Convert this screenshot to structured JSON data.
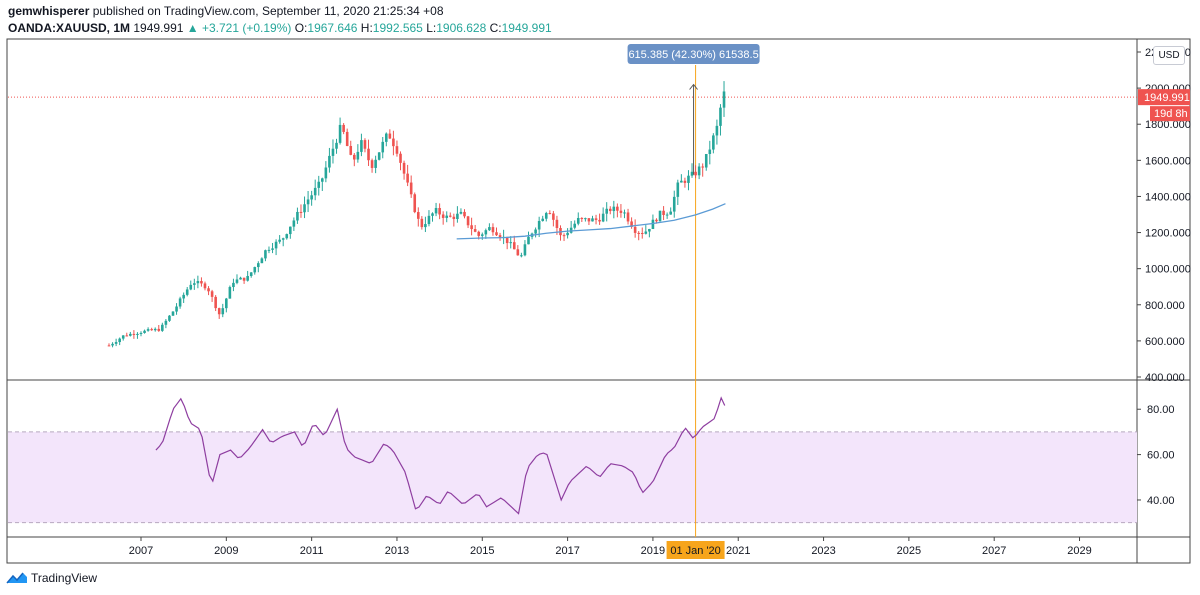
{
  "header": {
    "author": "gemwhisperer",
    "published_text": "published on TradingView.com, September 11, 2020 21:25:34 +08",
    "symbol": "OANDA:XAUUSD, 1M",
    "last": "1949.991",
    "change": "▲ +3.721 (+0.19%)",
    "o_label": "O:",
    "o_val": "1967.646",
    "h_label": "H:",
    "h_val": "1992.565",
    "l_label": "L:",
    "l_val": "1906.628",
    "c_label": "C:",
    "c_val": "1949.991"
  },
  "currency_button": "USD",
  "measure_label": "615.385 (42.30%) 61538.5",
  "price_badge": "1949.991",
  "countdown_badge": "19d 8h",
  "crosshair_date": "01 Jan '20",
  "footer": {
    "brand": "TradingView"
  },
  "colors": {
    "up": "#26a69a",
    "down": "#ef5350",
    "ma": "#5b9bd5",
    "rsi_line": "#8e3ea0",
    "rsi_band": "#f3e5fb",
    "crosshair": "#f7a51c",
    "measure_box": "#6a91c6"
  },
  "chart_data": [
    {
      "type": "candlestick",
      "title": "OANDA:XAUUSD, 1M",
      "ylim": [
        400,
        2200
      ],
      "y_ticks": [
        2200,
        2000,
        1800,
        1600,
        1400,
        1200,
        1000,
        800,
        600,
        400
      ],
      "y_tick_labels": [
        "2200.000",
        "2000.000",
        "1800.000",
        "1600.000",
        "1400.000",
        "1200.000",
        "1000.000",
        "800.000",
        "600.000",
        "400.000"
      ],
      "x_ticks": [
        2007,
        2009,
        2011,
        2013,
        2015,
        2017,
        2019,
        2021,
        2023,
        2025,
        2027,
        2029
      ],
      "x_range": [
        2006.0,
        2030.7
      ],
      "last_price": 1949.991,
      "price_anchors": [
        [
          2006.25,
          575
        ],
        [
          2006.6,
          630
        ],
        [
          2007.0,
          650
        ],
        [
          2007.45,
          665
        ],
        [
          2007.8,
          780
        ],
        [
          2008.2,
          930
        ],
        [
          2008.55,
          900
        ],
        [
          2008.85,
          740
        ],
        [
          2009.15,
          930
        ],
        [
          2009.5,
          950
        ],
        [
          2009.95,
          1110
        ],
        [
          2010.3,
          1160
        ],
        [
          2010.5,
          1240
        ],
        [
          2010.9,
          1380
        ],
        [
          2011.2,
          1470
        ],
        [
          2011.55,
          1700
        ],
        [
          2011.7,
          1790
        ],
        [
          2011.95,
          1580
        ],
        [
          2012.15,
          1700
        ],
        [
          2012.4,
          1570
        ],
        [
          2012.8,
          1750
        ],
        [
          2013.0,
          1660
        ],
        [
          2013.35,
          1380
        ],
        [
          2013.55,
          1230
        ],
        [
          2013.9,
          1320
        ],
        [
          2014.2,
          1280
        ],
        [
          2014.5,
          1300
        ],
        [
          2014.9,
          1180
        ],
        [
          2015.2,
          1230
        ],
        [
          2015.6,
          1150
        ],
        [
          2015.9,
          1060
        ],
        [
          2016.1,
          1180
        ],
        [
          2016.55,
          1340
        ],
        [
          2016.85,
          1170
        ],
        [
          2017.25,
          1270
        ],
        [
          2017.7,
          1270
        ],
        [
          2018.0,
          1330
        ],
        [
          2018.3,
          1320
        ],
        [
          2018.6,
          1210
        ],
        [
          2018.8,
          1200
        ],
        [
          2019.15,
          1300
        ],
        [
          2019.4,
          1320
        ],
        [
          2019.6,
          1470
        ],
        [
          2019.95,
          1520
        ],
        [
          2020.2,
          1580
        ],
        [
          2020.5,
          1780
        ],
        [
          2020.65,
          1975
        ],
        [
          2020.7,
          1950
        ]
      ],
      "moving_average": [
        [
          2014.4,
          1165
        ],
        [
          2015.0,
          1170
        ],
        [
          2015.5,
          1172
        ],
        [
          2016.0,
          1180
        ],
        [
          2016.5,
          1196
        ],
        [
          2017.0,
          1208
        ],
        [
          2017.5,
          1215
        ],
        [
          2018.0,
          1222
        ],
        [
          2018.5,
          1236
        ],
        [
          2019.0,
          1250
        ],
        [
          2019.5,
          1268
        ],
        [
          2020.0,
          1298
        ],
        [
          2020.4,
          1330
        ],
        [
          2020.7,
          1360
        ]
      ],
      "measure": {
        "from_date": "01 Jan '20",
        "change": 615.385,
        "percent": 42.3,
        "ticks": 61538.5
      }
    },
    {
      "type": "line",
      "title": "RSI",
      "ylim": [
        25,
        92
      ],
      "y_ticks": [
        80,
        60,
        40
      ],
      "y_tick_labels": [
        "80.00",
        "60.00",
        "40.00"
      ],
      "band": [
        30,
        70
      ],
      "anchors": [
        [
          2007.35,
          62
        ],
        [
          2007.5,
          65
        ],
        [
          2007.75,
          80
        ],
        [
          2007.95,
          85
        ],
        [
          2008.15,
          74
        ],
        [
          2008.4,
          71
        ],
        [
          2008.65,
          46
        ],
        [
          2008.85,
          60
        ],
        [
          2009.1,
          62
        ],
        [
          2009.3,
          58
        ],
        [
          2009.55,
          63
        ],
        [
          2009.85,
          71
        ],
        [
          2010.05,
          65
        ],
        [
          2010.3,
          68
        ],
        [
          2010.6,
          70
        ],
        [
          2010.8,
          63
        ],
        [
          2011.05,
          74
        ],
        [
          2011.3,
          68
        ],
        [
          2011.6,
          80
        ],
        [
          2011.8,
          63
        ],
        [
          2012.0,
          59
        ],
        [
          2012.4,
          56
        ],
        [
          2012.7,
          65
        ],
        [
          2012.9,
          62
        ],
        [
          2013.2,
          52
        ],
        [
          2013.45,
          35
        ],
        [
          2013.7,
          42
        ],
        [
          2014.0,
          38
        ],
        [
          2014.2,
          44
        ],
        [
          2014.55,
          38
        ],
        [
          2014.9,
          43
        ],
        [
          2015.1,
          37
        ],
        [
          2015.45,
          41
        ],
        [
          2015.85,
          34
        ],
        [
          2016.05,
          54
        ],
        [
          2016.3,
          60
        ],
        [
          2016.5,
          61
        ],
        [
          2016.85,
          40
        ],
        [
          2017.05,
          48
        ],
        [
          2017.45,
          55
        ],
        [
          2017.75,
          50
        ],
        [
          2018.0,
          56
        ],
        [
          2018.3,
          55
        ],
        [
          2018.55,
          52
        ],
        [
          2018.75,
          43
        ],
        [
          2019.0,
          48
        ],
        [
          2019.3,
          60
        ],
        [
          2019.5,
          63
        ],
        [
          2019.75,
          72
        ],
        [
          2019.95,
          67
        ],
        [
          2020.15,
          72
        ],
        [
          2020.45,
          76
        ],
        [
          2020.6,
          85
        ],
        [
          2020.7,
          81
        ]
      ]
    }
  ]
}
